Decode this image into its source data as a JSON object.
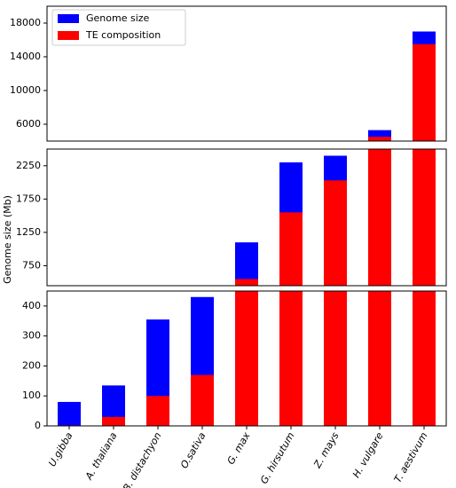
{
  "chart_data": {
    "type": "bar",
    "y_label": "Genome size (Mb)",
    "categories": [
      "U.gibba",
      "A. thaliana",
      "B. distachyon",
      "O.sativa",
      "G. max",
      "G. hirsutum",
      "Z. mays",
      "H. vulgare",
      "T. aestivum"
    ],
    "series": [
      {
        "name": "Genome size",
        "color": "#0000ff",
        "values": [
          80,
          135,
          355,
          430,
          1100,
          2300,
          2400,
          5300,
          17000
        ]
      },
      {
        "name": "TE composition",
        "color": "#ff0000",
        "values": [
          2,
          30,
          100,
          170,
          550,
          1550,
          2030,
          4500,
          15500
        ]
      }
    ],
    "axes": [
      {
        "ylim": [
          4000,
          20000
        ],
        "yticks": [
          6000,
          10000,
          14000,
          18000
        ]
      },
      {
        "ylim": [
          450,
          2500
        ],
        "yticks": [
          750,
          1250,
          1750,
          2250
        ]
      },
      {
        "ylim": [
          0,
          450
        ],
        "yticks": [
          0,
          100,
          200,
          300,
          400
        ]
      }
    ],
    "legend": "upper left"
  }
}
